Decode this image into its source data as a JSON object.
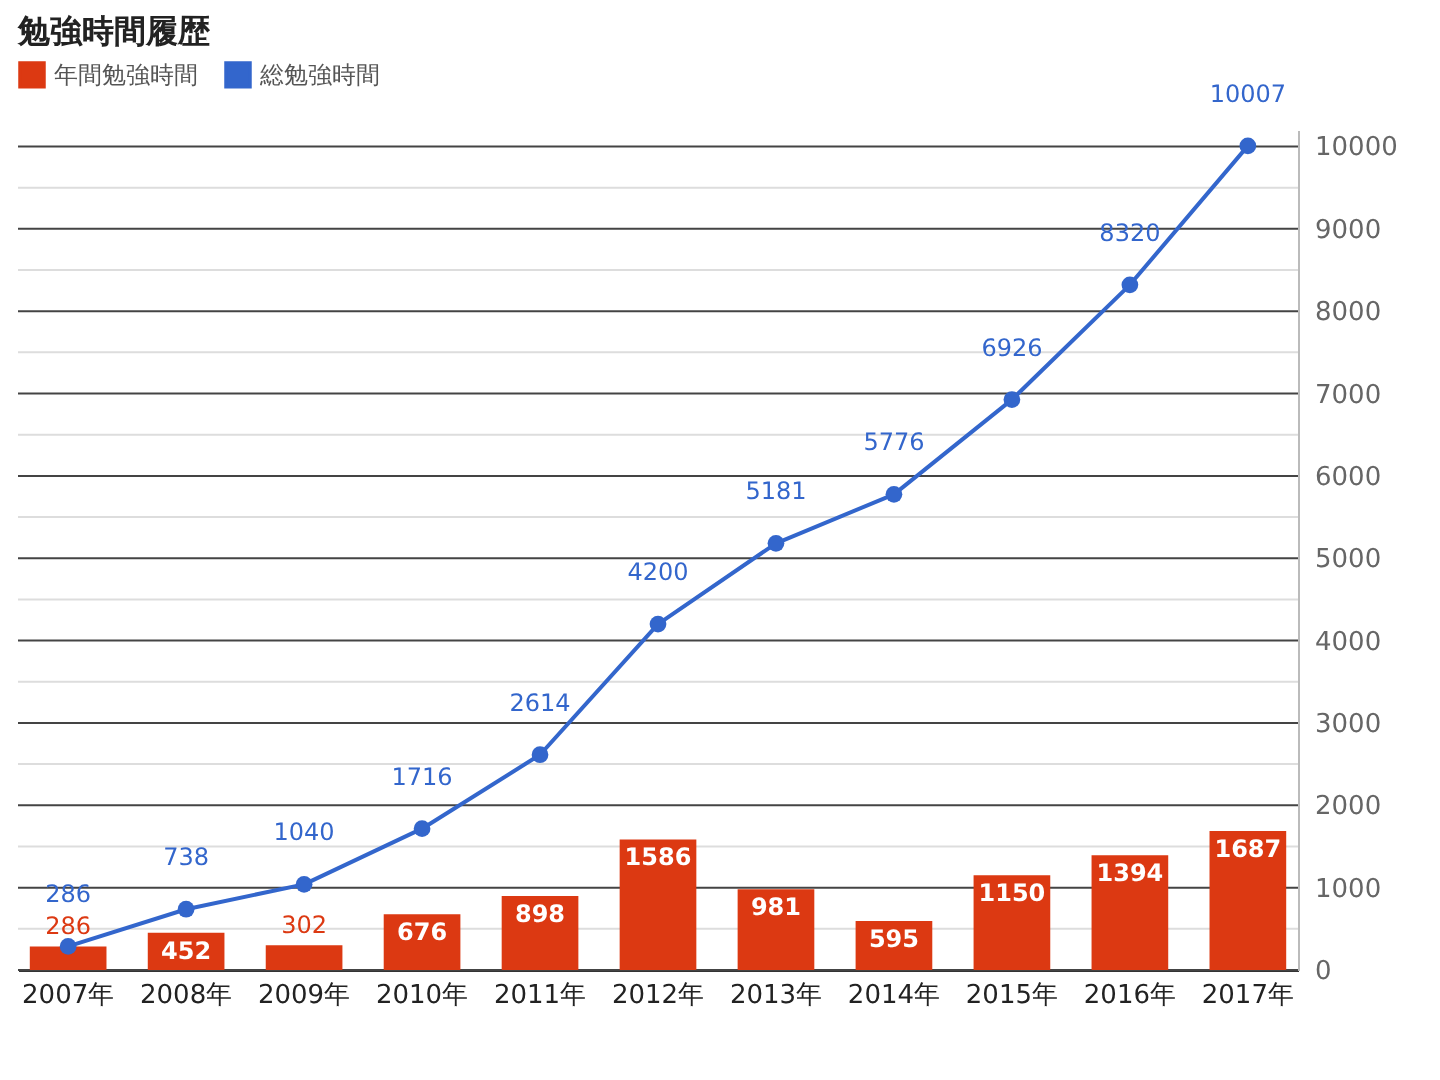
{
  "chart_data": {
    "type": "bar",
    "title": "勉強時間履歴",
    "categories": [
      "2007年",
      "2008年",
      "2009年",
      "2010年",
      "2011年",
      "2012年",
      "2013年",
      "2014年",
      "2015年",
      "2016年",
      "2017年"
    ],
    "series": [
      {
        "name": "年間勉強時間",
        "color": "#dc3912",
        "values": [
          286,
          452,
          302,
          676,
          898,
          1586,
          981,
          595,
          1150,
          1394,
          1687
        ]
      },
      {
        "name": "総勉強時間",
        "type": "line",
        "color": "#3366cc",
        "values": [
          286,
          738,
          1040,
          1716,
          2614,
          4200,
          5181,
          5776,
          6926,
          8320,
          10007
        ]
      }
    ],
    "ylim": [
      0,
      10200
    ],
    "yticks": [
      0,
      {
        "value": 500,
        "label": null
      },
      1000,
      {
        "value": 1500,
        "label": null
      },
      2000,
      {
        "value": 2500,
        "label": null
      },
      3000,
      {
        "value": 3500,
        "label": null
      },
      4000,
      {
        "value": 4500,
        "label": null
      },
      5000,
      {
        "value": 5500,
        "label": null
      },
      6000,
      {
        "value": 6500,
        "label": null
      },
      7000,
      {
        "value": 7500,
        "label": null
      },
      8000,
      {
        "value": 8500,
        "label": null
      },
      9000,
      {
        "value": 9500,
        "label": null
      },
      10000
    ],
    "grid": true,
    "legend": "top",
    "marker": "circle",
    "data_labels": true
  }
}
